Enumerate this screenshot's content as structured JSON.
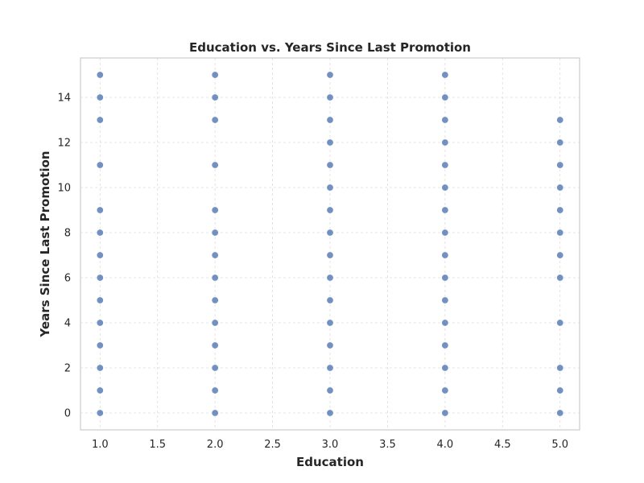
{
  "chart_data": {
    "type": "scatter",
    "title": "Education vs. Years Since Last Promotion",
    "xlabel": "Education",
    "ylabel": "Years Since Last Promotion",
    "xlim": [
      0.83,
      5.17
    ],
    "ylim": [
      -0.75,
      15.75
    ],
    "x_ticks": [
      "1.0",
      "1.5",
      "2.0",
      "2.5",
      "3.0",
      "3.5",
      "4.0",
      "4.5",
      "5.0"
    ],
    "y_ticks": [
      "0",
      "2",
      "4",
      "6",
      "8",
      "10",
      "12",
      "14"
    ],
    "grid": true,
    "series": [
      {
        "color": "#4c72b0",
        "points": [
          {
            "x": 1,
            "y": 0
          },
          {
            "x": 1,
            "y": 1
          },
          {
            "x": 1,
            "y": 2
          },
          {
            "x": 1,
            "y": 3
          },
          {
            "x": 1,
            "y": 4
          },
          {
            "x": 1,
            "y": 5
          },
          {
            "x": 1,
            "y": 6
          },
          {
            "x": 1,
            "y": 7
          },
          {
            "x": 1,
            "y": 8
          },
          {
            "x": 1,
            "y": 9
          },
          {
            "x": 1,
            "y": 11
          },
          {
            "x": 1,
            "y": 13
          },
          {
            "x": 1,
            "y": 14
          },
          {
            "x": 1,
            "y": 15
          },
          {
            "x": 2,
            "y": 0
          },
          {
            "x": 2,
            "y": 1
          },
          {
            "x": 2,
            "y": 2
          },
          {
            "x": 2,
            "y": 3
          },
          {
            "x": 2,
            "y": 4
          },
          {
            "x": 2,
            "y": 5
          },
          {
            "x": 2,
            "y": 6
          },
          {
            "x": 2,
            "y": 7
          },
          {
            "x": 2,
            "y": 8
          },
          {
            "x": 2,
            "y": 9
          },
          {
            "x": 2,
            "y": 11
          },
          {
            "x": 2,
            "y": 13
          },
          {
            "x": 2,
            "y": 14
          },
          {
            "x": 2,
            "y": 15
          },
          {
            "x": 3,
            "y": 0
          },
          {
            "x": 3,
            "y": 1
          },
          {
            "x": 3,
            "y": 2
          },
          {
            "x": 3,
            "y": 3
          },
          {
            "x": 3,
            "y": 4
          },
          {
            "x": 3,
            "y": 5
          },
          {
            "x": 3,
            "y": 6
          },
          {
            "x": 3,
            "y": 7
          },
          {
            "x": 3,
            "y": 8
          },
          {
            "x": 3,
            "y": 9
          },
          {
            "x": 3,
            "y": 10
          },
          {
            "x": 3,
            "y": 11
          },
          {
            "x": 3,
            "y": 12
          },
          {
            "x": 3,
            "y": 13
          },
          {
            "x": 3,
            "y": 14
          },
          {
            "x": 3,
            "y": 15
          },
          {
            "x": 4,
            "y": 0
          },
          {
            "x": 4,
            "y": 1
          },
          {
            "x": 4,
            "y": 2
          },
          {
            "x": 4,
            "y": 3
          },
          {
            "x": 4,
            "y": 4
          },
          {
            "x": 4,
            "y": 5
          },
          {
            "x": 4,
            "y": 6
          },
          {
            "x": 4,
            "y": 7
          },
          {
            "x": 4,
            "y": 8
          },
          {
            "x": 4,
            "y": 9
          },
          {
            "x": 4,
            "y": 10
          },
          {
            "x": 4,
            "y": 11
          },
          {
            "x": 4,
            "y": 12
          },
          {
            "x": 4,
            "y": 13
          },
          {
            "x": 4,
            "y": 14
          },
          {
            "x": 4,
            "y": 15
          },
          {
            "x": 5,
            "y": 0
          },
          {
            "x": 5,
            "y": 1
          },
          {
            "x": 5,
            "y": 2
          },
          {
            "x": 5,
            "y": 4
          },
          {
            "x": 5,
            "y": 6
          },
          {
            "x": 5,
            "y": 7
          },
          {
            "x": 5,
            "y": 8
          },
          {
            "x": 5,
            "y": 9
          },
          {
            "x": 5,
            "y": 10
          },
          {
            "x": 5,
            "y": 11
          },
          {
            "x": 5,
            "y": 12
          },
          {
            "x": 5,
            "y": 13
          }
        ]
      }
    ]
  }
}
